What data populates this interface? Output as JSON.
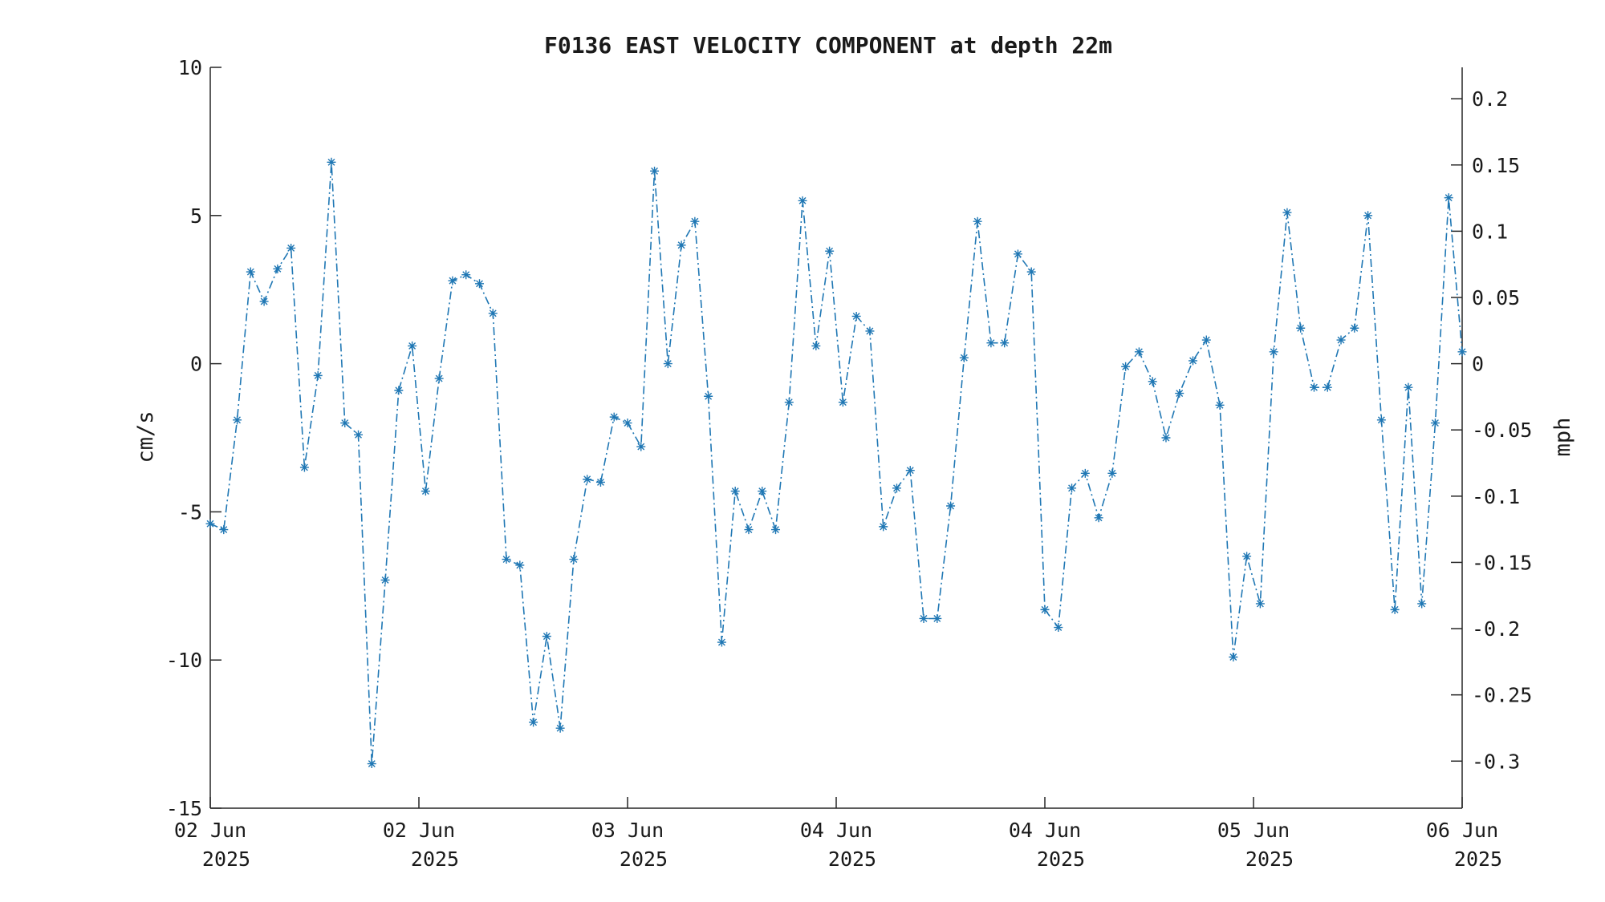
{
  "chart_data": {
    "type": "line",
    "title": "F0136 EAST VELOCITY COMPONENT at depth 22m",
    "ylabel_left": "cm/s",
    "ylabel_right": "mph",
    "ylim_left": [
      -15,
      10
    ],
    "left_ticks": [
      10,
      5,
      0,
      -5,
      -10,
      -15
    ],
    "right_ticks": [
      "0.2",
      "0.15",
      "0.1",
      "0.05",
      "0",
      "-0.05",
      "-0.1",
      "-0.15",
      "-0.2",
      "-0.25",
      "-0.3"
    ],
    "right_tick_values": [
      0.2,
      0.15,
      0.1,
      0.05,
      0,
      -0.05,
      -0.1,
      -0.15,
      -0.2,
      -0.25,
      -0.3
    ],
    "mph_per_cms": 0.0223694,
    "xlim_hours": [
      0,
      96
    ],
    "x_ticks": [
      {
        "hour": 0,
        "line1": "02 Jun",
        "line2": "2025"
      },
      {
        "hour": 16,
        "line1": "02 Jun",
        "line2": "2025"
      },
      {
        "hour": 32,
        "line1": "03 Jun",
        "line2": "2025"
      },
      {
        "hour": 48,
        "line1": "04 Jun",
        "line2": "2025"
      },
      {
        "hour": 64,
        "line1": "04 Jun",
        "line2": "2025"
      },
      {
        "hour": 80,
        "line1": "05 Jun",
        "line2": "2025"
      },
      {
        "hour": 96,
        "line1": "06 Jun",
        "line2": "2025"
      }
    ],
    "series": [
      {
        "color": "#1f77b4",
        "marker": "asterisk",
        "line_style": "dash-dot",
        "values": [
          -5.4,
          -5.6,
          -1.9,
          3.1,
          2.1,
          3.2,
          3.9,
          -3.5,
          -0.4,
          6.8,
          -2.0,
          -2.4,
          -13.5,
          -7.3,
          -0.9,
          0.6,
          -4.3,
          -0.5,
          2.8,
          3.0,
          2.7,
          1.7,
          -6.6,
          -6.8,
          -12.1,
          -9.2,
          -12.3,
          -6.6,
          -3.9,
          -4.0,
          -1.8,
          -2.0,
          -2.8,
          6.5,
          0.0,
          4.0,
          4.8,
          -1.1,
          -9.4,
          -4.3,
          -5.6,
          -4.3,
          -5.6,
          -1.3,
          5.5,
          0.6,
          3.8,
          -1.3,
          1.6,
          1.1,
          -5.5,
          -4.2,
          -3.6,
          -8.6,
          -8.6,
          -4.8,
          0.2,
          4.8,
          0.7,
          0.7,
          3.7,
          3.1,
          -8.3,
          -8.9,
          -4.2,
          -3.7,
          -5.2,
          -3.7,
          -0.1,
          0.4,
          -0.6,
          -2.5,
          -1.0,
          0.1,
          0.8,
          -1.4,
          -9.9,
          -6.5,
          -8.1,
          0.4,
          5.1,
          1.2,
          -0.8,
          -0.8,
          0.8,
          1.2,
          5.0,
          -1.9,
          -8.3,
          -0.8,
          -8.1,
          -2.0,
          5.6,
          0.4
        ]
      }
    ],
    "grid": false
  }
}
